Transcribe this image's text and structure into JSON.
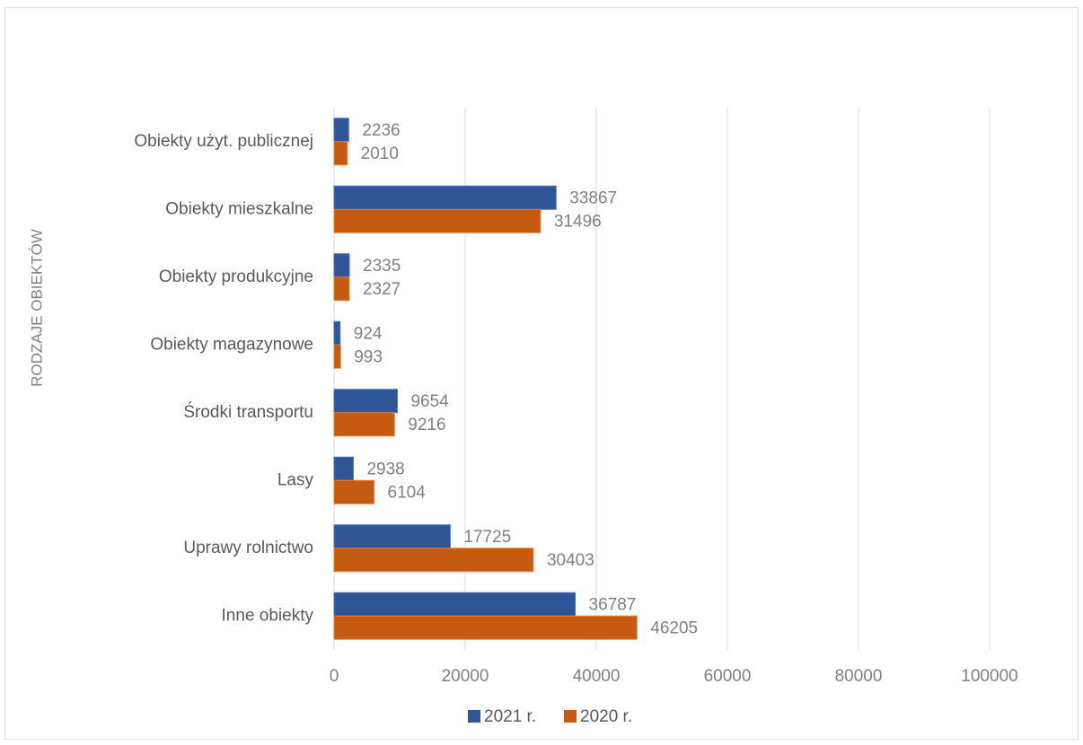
{
  "chart_data": {
    "type": "bar",
    "orientation": "horizontal",
    "title": "",
    "xlabel": "",
    "ylabel": "RODZAJE OBIEKTÓW",
    "categories": [
      "Obiekty użyt. publicznej",
      "Obiekty mieszkalne",
      "Obiekty produkcyjne",
      "Obiekty magazynowe",
      "Środki transportu",
      "Lasy",
      "Uprawy rolnictwo",
      "Inne obiekty"
    ],
    "series": [
      {
        "name": "2021 r.",
        "color": "#2F5597",
        "values": [
          2236,
          33867,
          2335,
          924,
          9654,
          2938,
          17725,
          36787
        ]
      },
      {
        "name": "2020 r.",
        "color": "#C55A11",
        "values": [
          2010,
          31496,
          2327,
          993,
          9216,
          6104,
          30403,
          46205
        ]
      }
    ],
    "xlim": [
      0,
      100000
    ],
    "x_ticks": [
      "0",
      "20000",
      "40000",
      "60000",
      "80000",
      "100000"
    ],
    "grid": true,
    "data_labels": true,
    "legend_position": "bottom"
  }
}
